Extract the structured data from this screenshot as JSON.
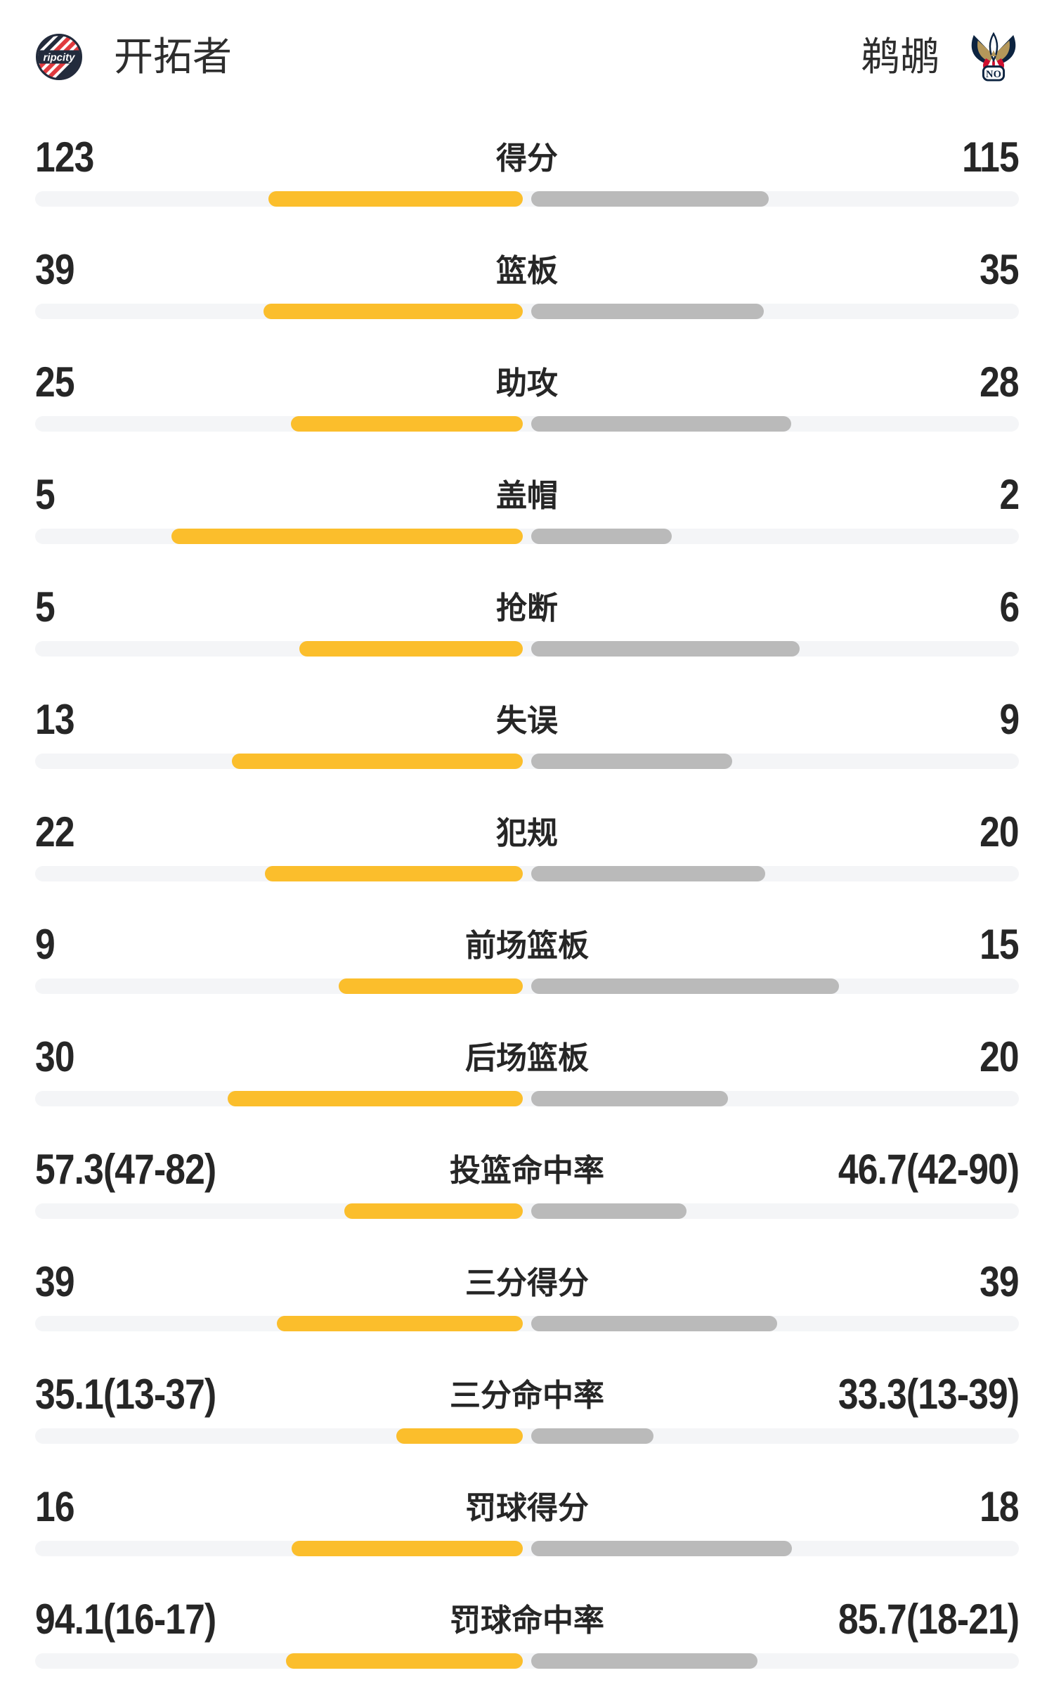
{
  "header": {
    "left_team": {
      "name": "开拓者",
      "logo": "blazers-ripcity-logo",
      "logo_text": "ripcity"
    },
    "right_team": {
      "name": "鹈鹕",
      "logo": "pelicans-no-logo",
      "logo_text": "NO"
    }
  },
  "colors": {
    "left_bar": "#FBBE2C",
    "right_bar": "#BABABA",
    "track": "#F4F5F7",
    "text": "#262626",
    "blazers_red": "#E03A3E",
    "blazers_navy": "#222B3C",
    "pelicans_navy": "#0C2340",
    "pelicans_gold": "#B4975A",
    "pelicans_red": "#CE0E2D"
  },
  "chart_data": {
    "type": "bar",
    "orientation": "horizontal-paired-from-center",
    "legend": [
      "开拓者",
      "鹈鹕"
    ],
    "legend_position": "top",
    "grid": false,
    "categories": [
      "得分",
      "篮板",
      "助攻",
      "盖帽",
      "抢断",
      "失误",
      "犯规",
      "前场篮板",
      "后场篮板",
      "投篮命中率",
      "三分得分",
      "三分命中率",
      "罚球得分",
      "罚球命中率"
    ],
    "series": [
      {
        "name": "开拓者",
        "values": [
          "123",
          "39",
          "25",
          "5",
          "5",
          "13",
          "22",
          "9",
          "30",
          "57.3(47-82)",
          "39",
          "35.1(13-37)",
          "16",
          "94.1(16-17)"
        ]
      },
      {
        "name": "鹈鹕",
        "values": [
          "115",
          "35",
          "28",
          "2",
          "6",
          "9",
          "20",
          "15",
          "20",
          "46.7(42-90)",
          "39",
          "33.3(13-39)",
          "18",
          "85.7(18-21)"
        ]
      }
    ],
    "rows": [
      {
        "label": "得分",
        "left": "123",
        "right": "115",
        "left_bar": 362,
        "right_bar": 338
      },
      {
        "label": "篮板",
        "left": "39",
        "right": "35",
        "left_bar": 369,
        "right_bar": 331
      },
      {
        "label": "助攻",
        "left": "25",
        "right": "28",
        "left_bar": 330,
        "right_bar": 370
      },
      {
        "label": "盖帽",
        "left": "5",
        "right": "2",
        "left_bar": 500,
        "right_bar": 200
      },
      {
        "label": "抢断",
        "left": "5",
        "right": "6",
        "left_bar": 318,
        "right_bar": 382
      },
      {
        "label": "失误",
        "left": "13",
        "right": "9",
        "left_bar": 414,
        "right_bar": 286
      },
      {
        "label": "犯规",
        "left": "22",
        "right": "20",
        "left_bar": 367,
        "right_bar": 333
      },
      {
        "label": "前场篮板",
        "left": "9",
        "right": "15",
        "left_bar": 262,
        "right_bar": 438
      },
      {
        "label": "后场篮板",
        "left": "30",
        "right": "20",
        "left_bar": 420,
        "right_bar": 280
      },
      {
        "label": "投篮命中率",
        "left": "57.3(47-82)",
        "right": "46.7(42-90)",
        "left_bar": 254,
        "right_bar": 221
      },
      {
        "label": "三分得分",
        "left": "39",
        "right": "39",
        "left_bar": 350,
        "right_bar": 350
      },
      {
        "label": "三分命中率",
        "left": "35.1(13-37)",
        "right": "33.3(13-39)",
        "left_bar": 180,
        "right_bar": 174
      },
      {
        "label": "罚球得分",
        "left": "16",
        "right": "18",
        "left_bar": 329,
        "right_bar": 371
      },
      {
        "label": "罚球命中率",
        "left": "94.1(16-17)",
        "right": "85.7(18-21)",
        "left_bar": 337,
        "right_bar": 322
      }
    ]
  }
}
